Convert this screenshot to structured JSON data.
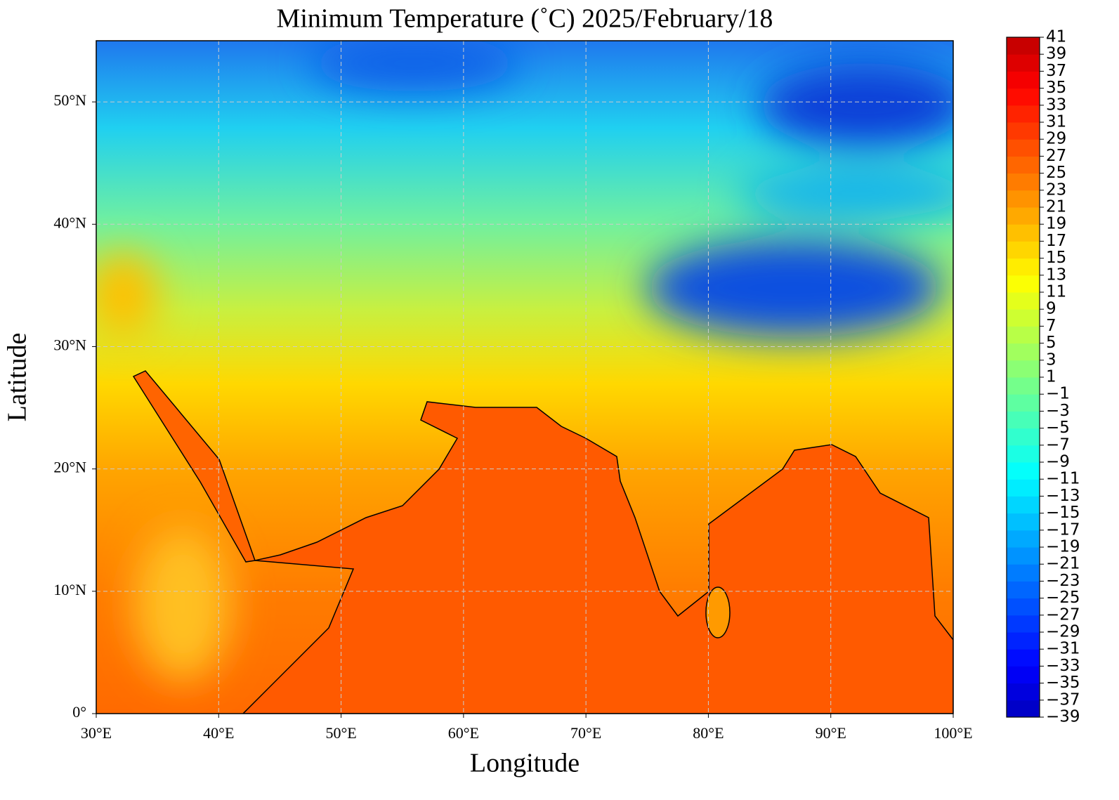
{
  "chart_data": {
    "type": "contour-map",
    "title": "Minimum Temperature (˚C)  2025/February/18",
    "xlabel": "Longitude",
    "ylabel": "Latitude",
    "xlim": [
      30,
      100
    ],
    "ylim": [
      0,
      55
    ],
    "xticks": [
      {
        "value": 30,
        "label": "30°E"
      },
      {
        "value": 40,
        "label": "40°E"
      },
      {
        "value": 50,
        "label": "50°E"
      },
      {
        "value": 60,
        "label": "60°E"
      },
      {
        "value": 70,
        "label": "70°E"
      },
      {
        "value": 80,
        "label": "80°E"
      },
      {
        "value": 90,
        "label": "90°E"
      },
      {
        "value": 100,
        "label": "100°E"
      }
    ],
    "yticks": [
      {
        "value": 0,
        "label": "0°"
      },
      {
        "value": 10,
        "label": "10°N"
      },
      {
        "value": 20,
        "label": "20°N"
      },
      {
        "value": 30,
        "label": "30°N"
      },
      {
        "value": 40,
        "label": "40°N"
      },
      {
        "value": 50,
        "label": "50°N"
      }
    ],
    "grid": true,
    "colormap": "jet",
    "colorbar": {
      "lim": [
        -39,
        41
      ],
      "ticks": [
        {
          "value": -39,
          "label": "−39"
        },
        {
          "value": -37,
          "label": "−37"
        },
        {
          "value": -35,
          "label": "−35"
        },
        {
          "value": -33,
          "label": "−33"
        },
        {
          "value": -31,
          "label": "−31"
        },
        {
          "value": -29,
          "label": "−29"
        },
        {
          "value": -27,
          "label": "−27"
        },
        {
          "value": -25,
          "label": "−25"
        },
        {
          "value": -23,
          "label": "−23"
        },
        {
          "value": -21,
          "label": "−21"
        },
        {
          "value": -19,
          "label": "−19"
        },
        {
          "value": -17,
          "label": "−17"
        },
        {
          "value": -15,
          "label": "−15"
        },
        {
          "value": -13,
          "label": "−13"
        },
        {
          "value": -11,
          "label": "−11"
        },
        {
          "value": -9,
          "label": "−9"
        },
        {
          "value": -7,
          "label": "−7"
        },
        {
          "value": -5,
          "label": "−5"
        },
        {
          "value": -3,
          "label": "−3"
        },
        {
          "value": -1,
          "label": "−1"
        },
        1,
        3,
        5,
        7,
        9,
        11,
        13,
        15,
        17,
        19,
        21,
        23,
        25,
        27,
        29,
        31,
        33,
        35,
        37,
        39,
        41
      ]
    }
  }
}
